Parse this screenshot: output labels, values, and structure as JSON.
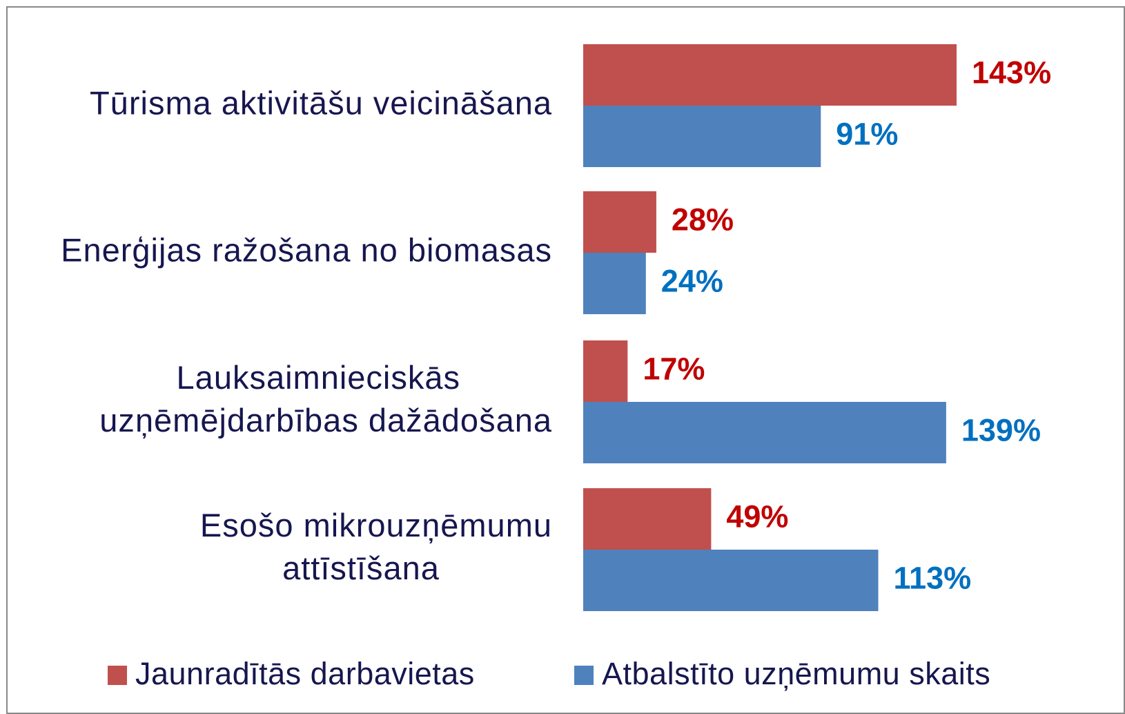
{
  "chart_data": {
    "type": "bar",
    "orientation": "horizontal",
    "categories": [
      "Tūrisma aktivitāšu veicināšana",
      "Enerģijas ražošana no biomasas",
      "Lauksaimnieciskās\nuzņēmējdarbības dažādošana",
      "Esošo mikrouzņēmumu\nattīstīšana"
    ],
    "series": [
      {
        "name": "Jaunradītās darbavietas",
        "color": "#c0504d",
        "label_color": "#c00000",
        "values": [
          143,
          28,
          17,
          49
        ],
        "value_labels": [
          "143%",
          "28%",
          "17%",
          "49%"
        ]
      },
      {
        "name": "Atbalstīto uzņēmumu skaits",
        "color": "#4f81bd",
        "label_color": "#0070c0",
        "values": [
          91,
          24,
          139,
          113
        ],
        "value_labels": [
          "91%",
          "24%",
          "139%",
          "113%"
        ]
      }
    ],
    "legend": "bottom"
  }
}
